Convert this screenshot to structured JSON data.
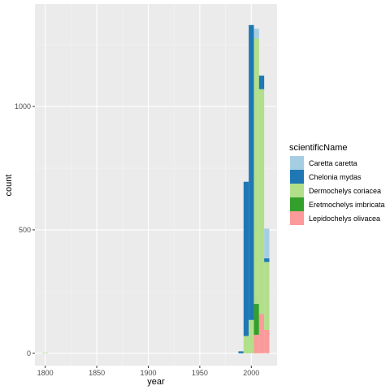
{
  "chart_data": {
    "type": "bar",
    "stacked": true,
    "xlabel": "year",
    "ylabel": "count",
    "xlim": [
      1790,
      2025
    ],
    "ylim": [
      -50,
      1415
    ],
    "x_ticks": [
      1800,
      1850,
      1900,
      1950,
      2000
    ],
    "y_ticks": [
      0,
      500,
      1000
    ],
    "bin_width": 5,
    "grid": true,
    "legend_title": "scientificName",
    "legend_position": "right",
    "series": [
      {
        "name": "Caretta caretta",
        "color": "#A6CEE3",
        "bins": [
          [
            2005,
            40
          ],
          [
            2010,
            0
          ],
          [
            2015,
            120
          ]
        ]
      },
      {
        "name": "Chelonia mydas",
        "color": "#1F78B4",
        "bins": [
          [
            1990,
            8
          ],
          [
            1995,
            625
          ],
          [
            2000,
            1195
          ],
          [
            2005,
            0
          ],
          [
            2010,
            55
          ],
          [
            2015,
            15
          ]
        ]
      },
      {
        "name": "Dermochelys coriacea",
        "color": "#B2DF8A",
        "bins": [
          [
            1800,
            2
          ],
          [
            1995,
            70
          ],
          [
            2000,
            135
          ],
          [
            2005,
            1075
          ],
          [
            2010,
            910
          ],
          [
            2015,
            275
          ]
        ]
      },
      {
        "name": "Eretmochelys imbricata",
        "color": "#33A02C",
        "bins": [
          [
            2005,
            125
          ],
          [
            2010,
            0
          ]
        ]
      },
      {
        "name": "Lepidochelys olivacea",
        "color": "#FB9A99",
        "bins": [
          [
            2005,
            75
          ],
          [
            2010,
            160
          ],
          [
            2015,
            95
          ]
        ]
      }
    ]
  }
}
